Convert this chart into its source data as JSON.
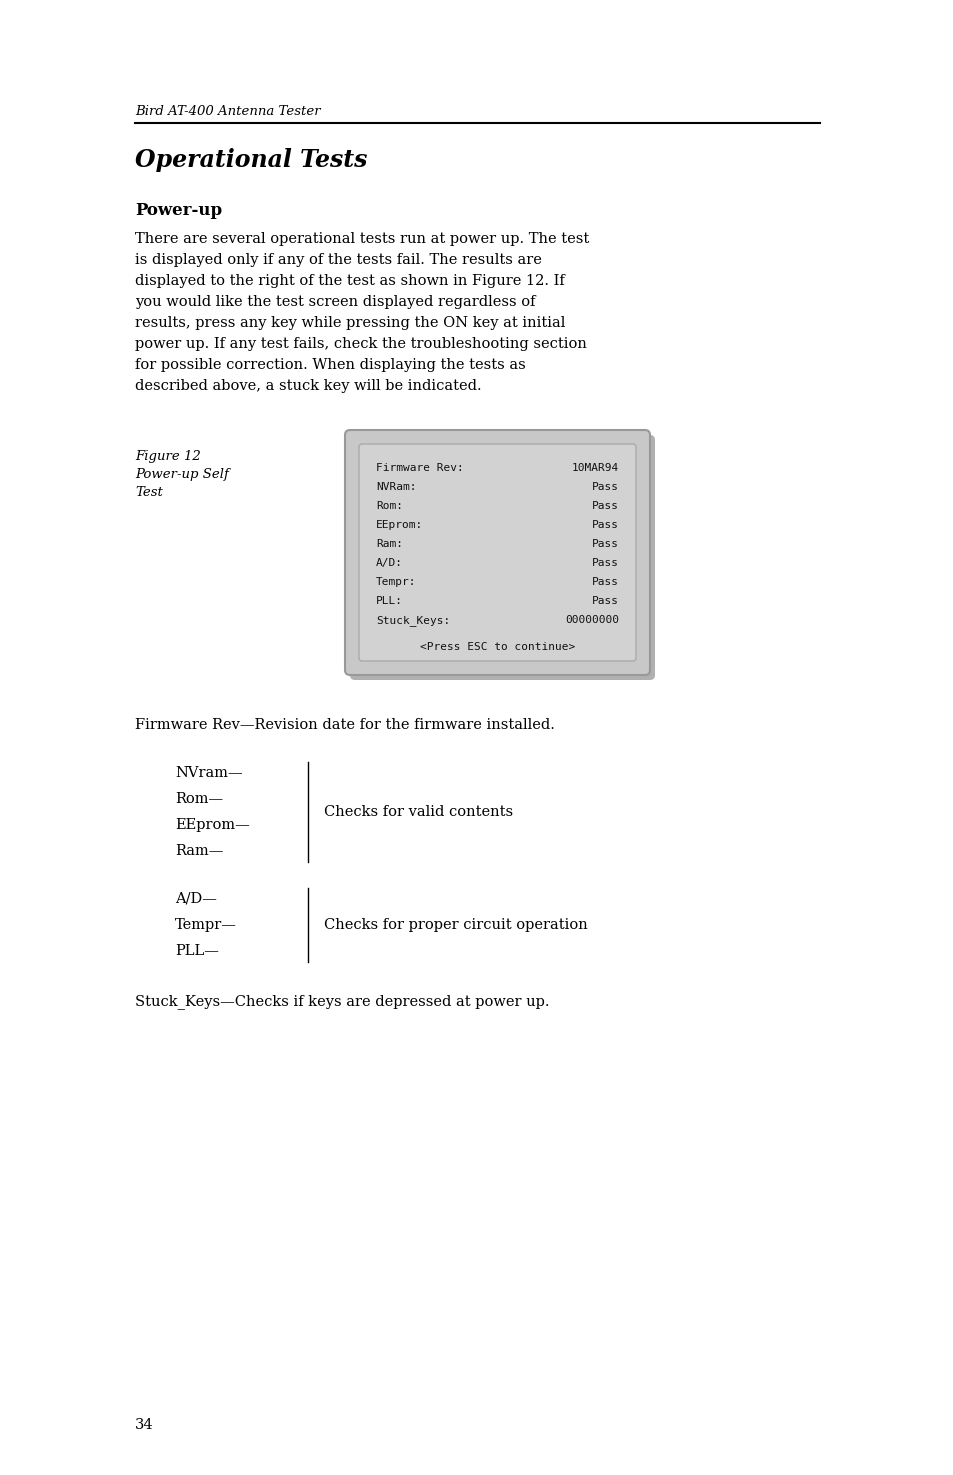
{
  "bg_color": "#ffffff",
  "header_italic": "Bird AT-400 Antenna Tester",
  "section_title": "Operational Tests",
  "subsection_title": "Power-up",
  "body_lines": [
    "There are several operational tests run at power up. The test",
    "is displayed only if any of the tests fail. The results are",
    "displayed to the right of the test as shown in Figure 12. If",
    "you would like the test screen displayed regardless of",
    "results, press any key while pressing the ON key at initial",
    "power up. If any test fails, check the troubleshooting section",
    "for possible correction. When displaying the tests as",
    "described above, a stuck key will be indicated."
  ],
  "figure_label_lines": [
    "Figure 12",
    "Power-up Self",
    "Test"
  ],
  "screen_lines": [
    [
      "Firmware Rev:",
      "10MAR94"
    ],
    [
      "NVRam:",
      "Pass"
    ],
    [
      "Rom:",
      "Pass"
    ],
    [
      "EEprom:",
      "Pass"
    ],
    [
      "Ram:",
      "Pass"
    ],
    [
      "A/D:",
      "Pass"
    ],
    [
      "Tempr:",
      "Pass"
    ],
    [
      "PLL:",
      "Pass"
    ],
    [
      "Stuck_Keys:",
      "00000000"
    ]
  ],
  "screen_footer": "<Press ESC to continue>",
  "firmware_desc": "Firmware Rev—Revision date for the firmware installed.",
  "table1_items": [
    "NVram—",
    "Rom—",
    "EEprom—",
    "Ram—"
  ],
  "table1_desc": "Checks for valid contents",
  "table2_items": [
    "A/D—",
    "Tempr—",
    "PLL—"
  ],
  "table2_desc": "Checks for proper circuit operation",
  "stuck_keys_desc": "Stuck_Keys—Checks if keys are depressed at power up.",
  "page_number": "34"
}
